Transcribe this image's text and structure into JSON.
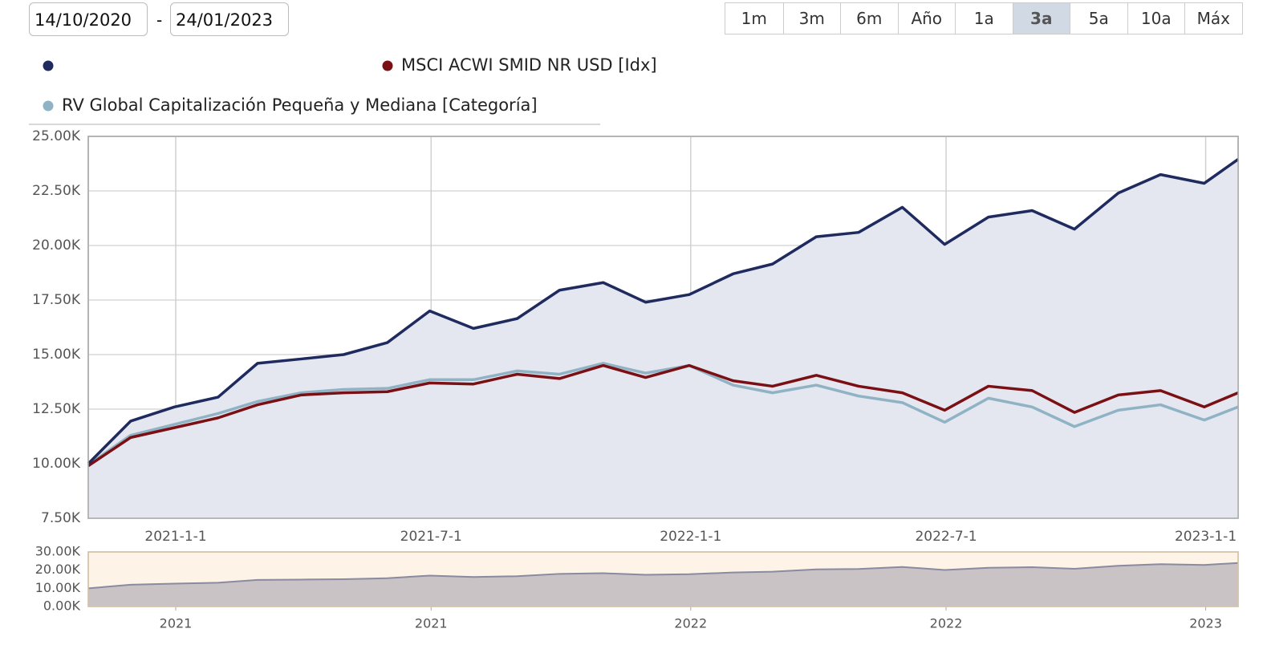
{
  "date_range": {
    "start": "14/10/2020",
    "separator": "-",
    "end": "24/01/2023"
  },
  "range_buttons": [
    "1m",
    "3m",
    "6m",
    "Año",
    "1a",
    "3a",
    "5a",
    "10a",
    "Máx"
  ],
  "selected_range": "3a",
  "chart_data": [
    {
      "type": "line",
      "x": [
        "2020-10-31",
        "2020-11-30",
        "2020-12-31",
        "2021-01-31",
        "2021-02-28",
        "2021-03-31",
        "2021-04-30",
        "2021-05-31",
        "2021-06-30",
        "2021-07-31",
        "2021-08-31",
        "2021-09-30",
        "2021-10-31",
        "2021-11-30",
        "2021-12-31",
        "2022-01-31",
        "2022-02-28",
        "2022-03-31",
        "2022-04-30",
        "2022-05-31",
        "2022-06-30",
        "2022-07-31",
        "2022-08-31",
        "2022-09-30",
        "2022-10-31",
        "2022-11-30",
        "2022-12-31",
        "2023-01-24"
      ],
      "series": [
        {
          "color": "#1f2a5e",
          "area_color": "#e4e7f0",
          "values": [
            10000,
            11950,
            12600,
            13050,
            14600,
            14800,
            15000,
            15550,
            17000,
            16200,
            16650,
            17950,
            18300,
            17400,
            17750,
            18700,
            19150,
            20400,
            20600,
            21750,
            20050,
            21300,
            21600,
            20750,
            22400,
            23250,
            22850,
            23950
          ]
        },
        {
          "name": "MSCI ACWI SMID NR USD [Idx]",
          "color": "#7a1014",
          "values": [
            9900,
            11200,
            11650,
            12100,
            12700,
            13150,
            13250,
            13300,
            13700,
            13650,
            14100,
            13900,
            14500,
            13950,
            14500,
            13800,
            13550,
            14050,
            13550,
            13250,
            12450,
            13550,
            13350,
            12350,
            13150,
            13350,
            12600,
            13250
          ]
        },
        {
          "name": "RV Global Capitalización Pequeña y Mediana [Categoría]",
          "color": "#8fb3c4",
          "values": [
            9950,
            11300,
            11800,
            12300,
            12850,
            13250,
            13400,
            13450,
            13850,
            13850,
            14250,
            14100,
            14600,
            14150,
            14500,
            13600,
            13250,
            13600,
            13100,
            12800,
            11900,
            13000,
            12600,
            11700,
            12450,
            12700,
            12000,
            12600
          ]
        }
      ],
      "xlim": [
        "2020-10-31",
        "2023-01-24"
      ],
      "xticks": [
        {
          "value": "2021-01-01",
          "label": "2021-1-1"
        },
        {
          "value": "2021-07-01",
          "label": "2021-7-1"
        },
        {
          "value": "2022-01-01",
          "label": "2022-1-1"
        },
        {
          "value": "2022-07-01",
          "label": "2022-7-1"
        },
        {
          "value": "2023-01-01",
          "label": "2023-1-1"
        }
      ],
      "ylim": [
        7500,
        25000
      ],
      "yticks": [
        {
          "value": 7500,
          "label": "7.50K"
        },
        {
          "value": 10000,
          "label": "10.00K"
        },
        {
          "value": 12500,
          "label": "12.50K"
        },
        {
          "value": 15000,
          "label": "15.00K"
        },
        {
          "value": 17500,
          "label": "17.50K"
        },
        {
          "value": 20000,
          "label": "20.00K"
        },
        {
          "value": 22500,
          "label": "22.50K"
        },
        {
          "value": 25000,
          "label": "25.00K"
        }
      ],
      "grid": true
    },
    {
      "type": "area",
      "color": "#8a8aa0",
      "area_color": "#c9c3c6",
      "xlim": [
        "2020-10-31",
        "2023-01-24"
      ],
      "xticks": [
        {
          "value": "2021-01-01",
          "label": "2021"
        },
        {
          "value": "2021-07-01",
          "label": "2021"
        },
        {
          "value": "2022-01-01",
          "label": "2022"
        },
        {
          "value": "2022-07-01",
          "label": "2022"
        },
        {
          "value": "2023-01-01",
          "label": "2023"
        }
      ],
      "ylim": [
        0,
        30000
      ],
      "yticks": [
        {
          "value": 0,
          "label": "0.00K"
        },
        {
          "value": 10000,
          "label": "10.00K"
        },
        {
          "value": 20000,
          "label": "20.00K"
        },
        {
          "value": 30000,
          "label": "30.00K"
        }
      ],
      "grid": false
    }
  ]
}
